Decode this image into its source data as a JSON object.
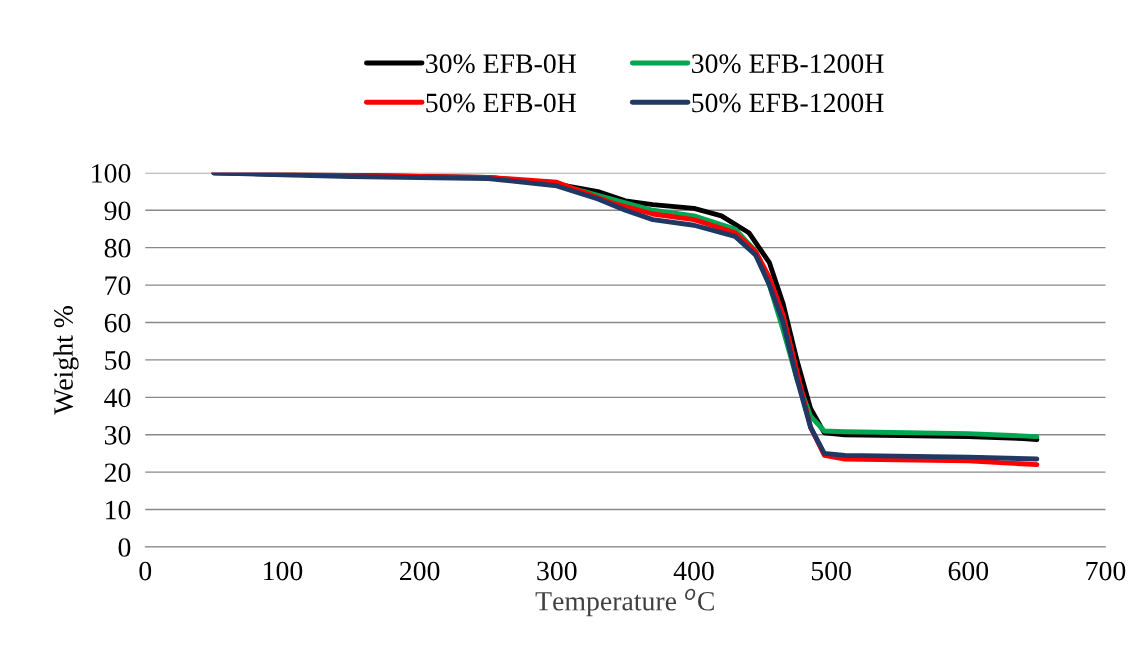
{
  "chart_data": {
    "type": "line",
    "xlabel": "Temperature $^{o}$C",
    "ylabel": "Weight %",
    "xlim": [
      0,
      700
    ],
    "xticks": [
      0,
      100,
      200,
      300,
      400,
      500,
      600,
      700
    ],
    "ylim": [
      0,
      100
    ],
    "yticks": [
      0,
      10,
      20,
      30,
      40,
      50,
      60,
      70,
      80,
      90,
      100
    ],
    "grid": "y",
    "legend": "top",
    "marker": "none",
    "line_style": "solid",
    "series": [
      {
        "name": "30% EFB-0H",
        "color": "#000000",
        "x": [
          50,
          150,
          250,
          300,
          330,
          350,
          370,
          400,
          420,
          440,
          455,
          465,
          475,
          485,
          495,
          510,
          550,
          600,
          640,
          650
        ],
        "values": [
          100,
          99.3,
          98.8,
          97,
          95,
          92.5,
          91.5,
          90.5,
          88.5,
          84,
          76,
          65,
          50,
          37,
          30.5,
          30,
          29.8,
          29.5,
          29,
          28.7
        ]
      },
      {
        "name": "30% EFB-1200H",
        "color": "#00a651",
        "x": [
          250,
          300,
          340,
          370,
          400,
          430,
          445,
          455,
          465,
          475,
          485,
          495,
          510,
          600,
          650
        ],
        "values": [
          98.8,
          97,
          93,
          90,
          88.5,
          85,
          79,
          70,
          58,
          45,
          35,
          31,
          30.8,
          30.3,
          29.5
        ]
      },
      {
        "name": "50% EFB-0H",
        "color": "#ff0000",
        "x": [
          50,
          150,
          250,
          300,
          340,
          370,
          400,
          430,
          445,
          455,
          465,
          475,
          485,
          495,
          510,
          600,
          650
        ],
        "values": [
          100,
          99.3,
          98.8,
          97.5,
          92,
          89,
          87.5,
          84,
          79,
          72,
          62,
          47,
          32,
          24.5,
          23.5,
          23,
          22
        ]
      },
      {
        "name": "50% EFB-1200H",
        "color": "#1f3864",
        "x": [
          50,
          150,
          250,
          300,
          330,
          350,
          370,
          400,
          430,
          445,
          455,
          465,
          475,
          485,
          495,
          510,
          600,
          650
        ],
        "values": [
          100,
          99,
          98.5,
          96.5,
          93,
          90,
          87.5,
          86,
          83,
          78,
          70,
          60,
          45,
          32,
          25,
          24.5,
          24,
          23.5
        ]
      }
    ]
  }
}
